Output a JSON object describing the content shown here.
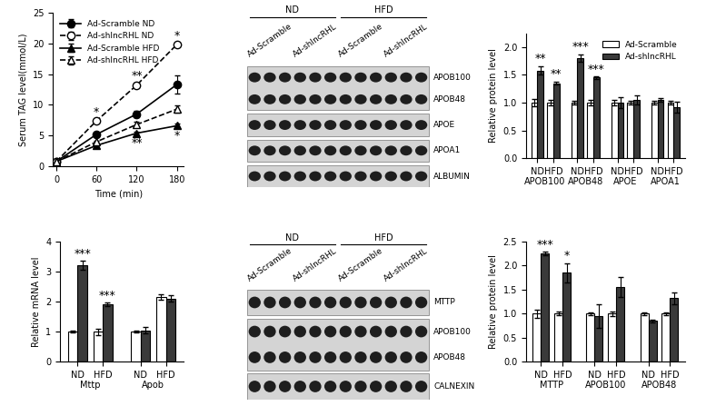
{
  "chart_data": [
    {
      "type": "line",
      "xlabel": "Time (min)",
      "ylabel": "Serum TAG level(mmol/L)",
      "x": [
        0,
        60,
        120,
        180
      ],
      "xlim": [
        -5,
        190
      ],
      "xticks": [
        0,
        60,
        120,
        180
      ],
      "ylim": [
        0,
        25
      ],
      "yticks": [
        0,
        5,
        10,
        15,
        20,
        25
      ],
      "legend": "upper left",
      "series": [
        {
          "name": "Ad-Scramble ND",
          "color": "#000000",
          "marker": "filled_circle",
          "line_style": "solid",
          "values": [
            0.8,
            5.2,
            8.5,
            13.3
          ],
          "errors": [
            0.1,
            0.3,
            0.5,
            1.5
          ]
        },
        {
          "name": "Ad-shlncRHL ND",
          "color": "#000000",
          "marker": "open_circle",
          "line_style": "dashed",
          "values": [
            0.8,
            7.4,
            13.2,
            19.8
          ],
          "errors": [
            0.1,
            0.3,
            0.4,
            0.3
          ],
          "significance": [
            null,
            "*",
            "**",
            "*"
          ]
        },
        {
          "name": "Ad-Scramble HFD",
          "color": "#000000",
          "marker": "filled_triangle",
          "line_style": "solid",
          "values": [
            0.8,
            3.4,
            5.4,
            6.6
          ],
          "errors": [
            0.1,
            0.2,
            0.2,
            0.3
          ],
          "significance": [
            null,
            null,
            "**",
            "*"
          ]
        },
        {
          "name": "Ad-shlncRHL HFD",
          "color": "#000000",
          "marker": "open_triangle",
          "line_style": "dashed",
          "values": [
            0.8,
            4.0,
            6.8,
            9.3
          ],
          "errors": [
            0.1,
            0.2,
            0.4,
            0.6
          ]
        }
      ]
    },
    {
      "type": "bar",
      "ylabel": "Relative protein level",
      "categories": [
        "ND",
        "HFD",
        "ND",
        "HFD",
        "ND",
        "HFD",
        "ND",
        "HFD"
      ],
      "groups": [
        "APOB100",
        "APOB48",
        "APOE",
        "APOA1"
      ],
      "ylim": [
        0,
        2.25
      ],
      "yticks": [
        0.0,
        0.5,
        1.0,
        1.5,
        2.0
      ],
      "legend": "upper right",
      "series": [
        {
          "name": "Ad-Scramble",
          "color": "#ffffff",
          "values": [
            1.0,
            1.0,
            1.0,
            1.0,
            1.0,
            1.0,
            1.0,
            1.0
          ],
          "errors": [
            0.06,
            0.05,
            0.04,
            0.05,
            0.05,
            0.04,
            0.04,
            0.03
          ]
        },
        {
          "name": "Ad-shlncRHL",
          "color": "#3a3a3a",
          "values": [
            1.58,
            1.35,
            1.8,
            1.45,
            1.0,
            1.05,
            1.05,
            0.92
          ],
          "errors": [
            0.08,
            0.03,
            0.07,
            0.02,
            0.1,
            0.08,
            0.03,
            0.1
          ],
          "significance": [
            "**",
            "**",
            "***",
            "***",
            null,
            null,
            null,
            null
          ]
        }
      ]
    },
    {
      "type": "bar",
      "ylabel": "Relative mRNA level",
      "categories": [
        "ND",
        "HFD",
        "ND",
        "HFD"
      ],
      "groups": [
        "Mttp",
        "Apob"
      ],
      "ylim": [
        0,
        4
      ],
      "yticks": [
        0,
        1,
        2,
        3,
        4
      ],
      "series": [
        {
          "name": "Ad-Scramble",
          "color": "#ffffff",
          "values": [
            1.0,
            1.0,
            1.0,
            2.15
          ],
          "errors": [
            0.03,
            0.1,
            0.03,
            0.08
          ]
        },
        {
          "name": "Ad-shlncRHL",
          "color": "#3a3a3a",
          "values": [
            3.2,
            1.9,
            1.05,
            2.1
          ],
          "errors": [
            0.15,
            0.06,
            0.1,
            0.1
          ],
          "significance": [
            "***",
            "***",
            null,
            null
          ]
        }
      ]
    },
    {
      "type": "bar",
      "ylabel": "Relative protein level",
      "categories": [
        "ND",
        "HFD",
        "ND",
        "HFD",
        "ND",
        "HFD"
      ],
      "groups": [
        "MTTP",
        "APOB100",
        "APOB48"
      ],
      "ylim": [
        0,
        2.5
      ],
      "yticks": [
        0.0,
        0.5,
        1.0,
        1.5,
        2.0,
        2.5
      ],
      "series": [
        {
          "name": "Ad-Scramble",
          "color": "#ffffff",
          "values": [
            1.0,
            1.0,
            1.0,
            1.0,
            1.0,
            1.0
          ],
          "errors": [
            0.08,
            0.04,
            0.03,
            0.05,
            0.03,
            0.03
          ]
        },
        {
          "name": "Ad-shlncRHL",
          "color": "#3a3a3a",
          "values": [
            2.25,
            1.85,
            0.95,
            1.55,
            0.85,
            1.32
          ],
          "errors": [
            0.03,
            0.2,
            0.25,
            0.2,
            0.03,
            0.12
          ],
          "significance": [
            "***",
            "*",
            null,
            null,
            null,
            null
          ]
        }
      ]
    }
  ],
  "blots": [
    {
      "groups": [
        {
          "label": "ND",
          "lanes": [
            {
              "label": "Ad-Scramble",
              "count": 3
            },
            {
              "label": "Ad-shlncRHL",
              "count": 3
            }
          ]
        },
        {
          "label": "HFD",
          "lanes": [
            {
              "label": "Ad-Scramble",
              "count": 3
            },
            {
              "label": "Ad-shlncRHL",
              "count": 3
            }
          ]
        }
      ],
      "rows": [
        [
          "APOB100",
          "APOB48"
        ],
        [
          "APOE"
        ],
        [
          "APOA1"
        ],
        [
          "ALBUMIN"
        ]
      ]
    },
    {
      "groups": [
        {
          "label": "ND",
          "lanes": [
            {
              "label": "Ad-Scramble",
              "count": 3
            },
            {
              "label": "Ad-shlncRHL",
              "count": 3
            }
          ]
        },
        {
          "label": "HFD",
          "lanes": [
            {
              "label": "Ad-Scramble",
              "count": 3
            },
            {
              "label": "Ad-shlncRHL",
              "count": 3
            }
          ]
        }
      ],
      "rows": [
        [
          "MTTP"
        ],
        [
          "APOB100",
          "APOB48"
        ],
        [
          "CALNEXIN"
        ]
      ]
    }
  ]
}
